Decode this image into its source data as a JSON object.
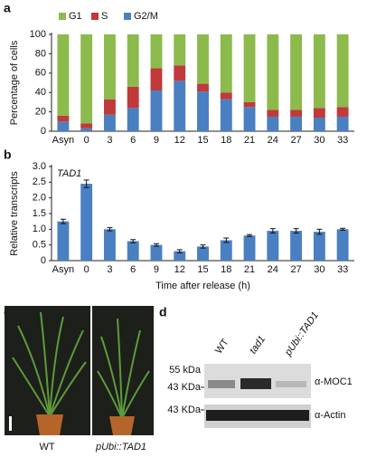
{
  "chart_data": [
    {
      "type": "bar",
      "stacked": true,
      "y_label": "Percentage of cells",
      "categories": [
        "Asyn",
        "0",
        "3",
        "6",
        "9",
        "12",
        "15",
        "18",
        "21",
        "24",
        "27",
        "30",
        "33"
      ],
      "series": [
        {
          "name": "G1",
          "color": "#8cba4c",
          "values": [
            84,
            92,
            67,
            54,
            35,
            32,
            51,
            60,
            70,
            78,
            78,
            76,
            75
          ]
        },
        {
          "name": "S",
          "color": "#c0393b",
          "values": [
            6,
            5,
            16,
            22,
            23,
            16,
            8,
            7,
            5,
            7,
            7,
            10,
            10
          ]
        },
        {
          "name": "G2/M",
          "color": "#4a7fc1",
          "values": [
            10,
            3,
            17,
            24,
            42,
            52,
            41,
            33,
            25,
            15,
            15,
            14,
            15
          ]
        }
      ],
      "ylim": [
        0,
        100
      ],
      "yticks": [
        0,
        20,
        40,
        60,
        80,
        100
      ]
    },
    {
      "type": "bar",
      "annotation": "TAD1",
      "y_label": "Relative transcripts",
      "x_label": "Time after release (h)",
      "categories": [
        "Asyn",
        "0",
        "3",
        "6",
        "9",
        "12",
        "15",
        "18",
        "21",
        "24",
        "27",
        "30",
        "33"
      ],
      "color": "#4a7fc1",
      "values": [
        1.25,
        2.45,
        1.0,
        0.62,
        0.5,
        0.3,
        0.45,
        0.65,
        0.8,
        0.95,
        0.95,
        0.92,
        1.0
      ],
      "errors": [
        0.07,
        0.12,
        0.05,
        0.05,
        0.04,
        0.05,
        0.05,
        0.07,
        0.03,
        0.07,
        0.07,
        0.08,
        0.03
      ],
      "ylim": [
        0,
        3
      ],
      "yticks": [
        0,
        0.5,
        {
          "value": 1,
          "label": "1.0"
        },
        1.5,
        {
          "value": 2,
          "label": "2.0"
        },
        2.5,
        {
          "value": 3,
          "label": "3.0"
        }
      ]
    }
  ],
  "panel_labels": [
    "a",
    "b",
    "c",
    "d"
  ],
  "photo": {
    "labels": [
      "WT",
      "pUbi::TAD1"
    ]
  },
  "blot": {
    "lanes": [
      "WT",
      "tad1",
      "pUbi::TAD1"
    ],
    "markers": [
      "55 kDa",
      "43 KDa",
      "43 KDa"
    ],
    "antibodies": [
      "α-MOC1",
      "α-Actin"
    ]
  }
}
